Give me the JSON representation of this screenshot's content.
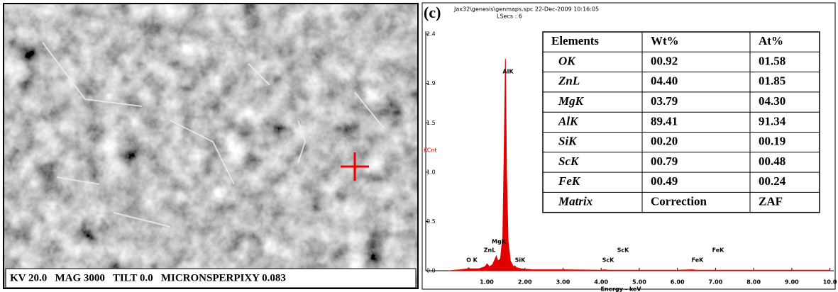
{
  "sem": {
    "caption": "KV 20.0   MAG 3000   TILT 0.0   MICRONSPERPIXY 0.083"
  },
  "panel_label": "(c)",
  "header": {
    "file": "Jax32\\genesis\\genmaps.spc  22-Dec-2009 10:16:05",
    "lsecs": "LSecs : 6"
  },
  "chart_data": {
    "type": "area",
    "x_label": "Energy - keV",
    "y_label": "KCnt",
    "color": "#e00000",
    "x": [
      0,
      0.3,
      0.5,
      0.52,
      0.56,
      0.8,
      0.95,
      1.01,
      1.07,
      1.15,
      1.22,
      1.25,
      1.29,
      1.36,
      1.42,
      1.46,
      1.49,
      1.52,
      1.56,
      1.62,
      1.7,
      1.74,
      1.78,
      1.9,
      2.2,
      3,
      4,
      4.09,
      4.2,
      5,
      6,
      6.4,
      6.5,
      7,
      8,
      10
    ],
    "values": [
      0,
      0.01,
      0.02,
      0.03,
      0.02,
      0.02,
      0.04,
      0.07,
      0.04,
      0.06,
      0.12,
      0.15,
      0.1,
      0.12,
      0.35,
      1.3,
      2.15,
      1.0,
      0.3,
      0.1,
      0.04,
      0.05,
      0.03,
      0.02,
      0.01,
      0.01,
      0.005,
      0.01,
      0.005,
      0.005,
      0.005,
      0.01,
      0.005,
      0.005,
      0.005,
      0.005
    ],
    "xlim": [
      -0.6,
      10.1
    ],
    "ylim": [
      0,
      2.4
    ],
    "xticks": [
      {
        "value": 1,
        "label": "1.00"
      },
      {
        "value": 2,
        "label": "2.00"
      },
      {
        "value": 3,
        "label": "3.00"
      },
      {
        "value": 4,
        "label": "4.00"
      },
      {
        "value": 5,
        "label": "5.00"
      },
      {
        "value": 6,
        "label": "6.00"
      },
      {
        "value": 7,
        "label": "7.00"
      },
      {
        "value": 8,
        "label": "8.00"
      },
      {
        "value": 9,
        "label": "9.00"
      },
      {
        "value": 10,
        "label": "10.0"
      }
    ],
    "yticks": [
      {
        "value": 0,
        "label": "0.0"
      },
      0.5,
      {
        "value": 1,
        "label": "1.0"
      },
      1.5,
      1.9,
      2.4
    ],
    "annotations": [
      "AlK",
      "MgK",
      "ZnL",
      "O K",
      "SiK",
      "ScK",
      "ScK",
      "FeK",
      "FeK"
    ]
  },
  "table": {
    "header": [
      "Elements",
      "Wt%",
      "At%"
    ],
    "rows": [
      [
        "OK",
        "00.92",
        "01.58"
      ],
      [
        "ZnL",
        "04.40",
        "01.85"
      ],
      [
        "MgK",
        "03.79",
        "04.30"
      ],
      [
        "AlK",
        "89.41",
        "91.34"
      ],
      [
        "SiK",
        "00.20",
        "00.19"
      ],
      [
        "ScK",
        "00.79",
        "00.48"
      ],
      [
        "FeK",
        "00.49",
        "00.24"
      ],
      [
        "Matrix",
        "Correction",
        "ZAF"
      ]
    ]
  }
}
